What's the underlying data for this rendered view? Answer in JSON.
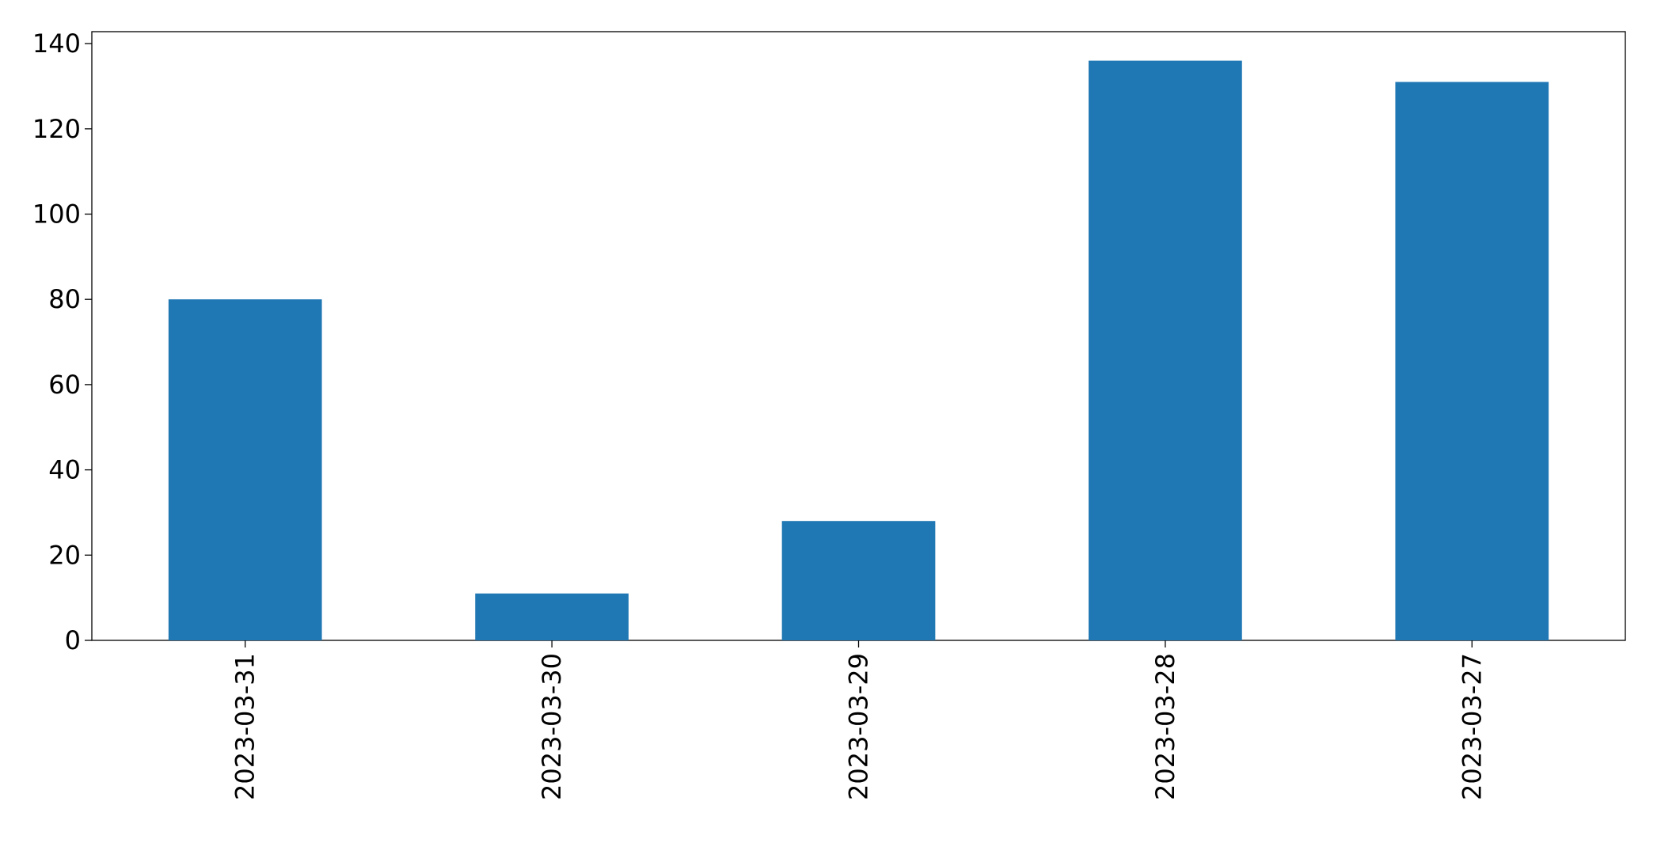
{
  "chart_data": {
    "type": "bar",
    "categories": [
      "2023-03-31",
      "2023-03-30",
      "2023-03-29",
      "2023-03-28",
      "2023-03-27"
    ],
    "values": [
      80,
      11,
      28,
      136,
      131
    ],
    "color": "#1f77b4",
    "ylim": [
      0,
      142.8
    ],
    "yticks": [
      0,
      20,
      40,
      60,
      80,
      100,
      120,
      140
    ],
    "grid": false
  }
}
